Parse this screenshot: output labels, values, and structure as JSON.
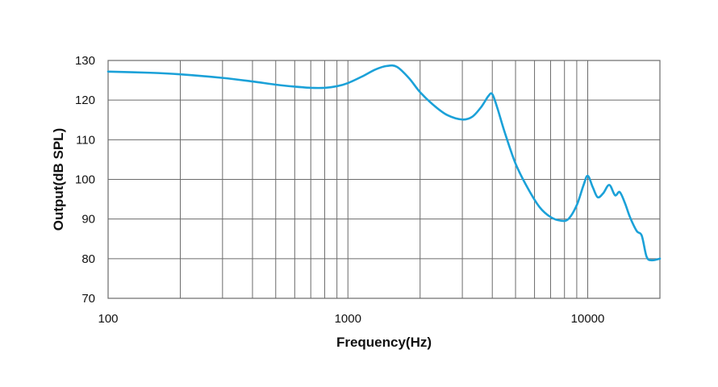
{
  "chart_data": {
    "type": "line",
    "xlabel": "Frequency(Hz)",
    "ylabel": "Output(dB SPL)",
    "xscale": "log",
    "xlim": [
      100,
      20000
    ],
    "ylim": [
      70,
      130
    ],
    "grid": true,
    "line_color": "#1ba1d8",
    "xticks": [
      {
        "value": 100,
        "label": "100"
      },
      {
        "value": 1000,
        "label": "1000"
      },
      {
        "value": 10000,
        "label": "10000"
      }
    ],
    "yticks": [
      {
        "value": 70,
        "label": "70"
      },
      {
        "value": 80,
        "label": "80"
      },
      {
        "value": 90,
        "label": "90"
      },
      {
        "value": 100,
        "label": "100"
      },
      {
        "value": 110,
        "label": "110"
      },
      {
        "value": 120,
        "label": "120"
      },
      {
        "value": 130,
        "label": "130"
      }
    ],
    "series": [
      {
        "x": [
          100,
          150,
          200,
          300,
          400,
          500,
          600,
          700,
          800,
          900,
          1000,
          1150,
          1300,
          1450,
          1600,
          1800,
          2000,
          2300,
          2600,
          3000,
          3300,
          3600,
          3850,
          4000,
          4200,
          4500,
          5000,
          5600,
          6300,
          7000,
          7700,
          8300,
          9000,
          9600,
          10000,
          10500,
          11000,
          11600,
          12300,
          13000,
          13600,
          14300,
          15000,
          16000,
          16800,
          17600,
          18500,
          20000
        ],
        "y": [
          127.2,
          126.9,
          126.5,
          125.6,
          124.7,
          123.9,
          123.4,
          123.1,
          123.1,
          123.5,
          124.3,
          126.0,
          127.7,
          128.6,
          128.4,
          125.5,
          122.0,
          118.5,
          116.2,
          115.1,
          115.8,
          118.3,
          121.0,
          121.5,
          118.0,
          112.0,
          104.0,
          98.0,
          93.0,
          90.5,
          89.6,
          90.0,
          93.5,
          98.5,
          100.9,
          98.0,
          95.5,
          96.5,
          98.6,
          96.0,
          96.8,
          94.0,
          90.5,
          87.0,
          85.8,
          80.5,
          79.6,
          80.0
        ]
      }
    ]
  }
}
